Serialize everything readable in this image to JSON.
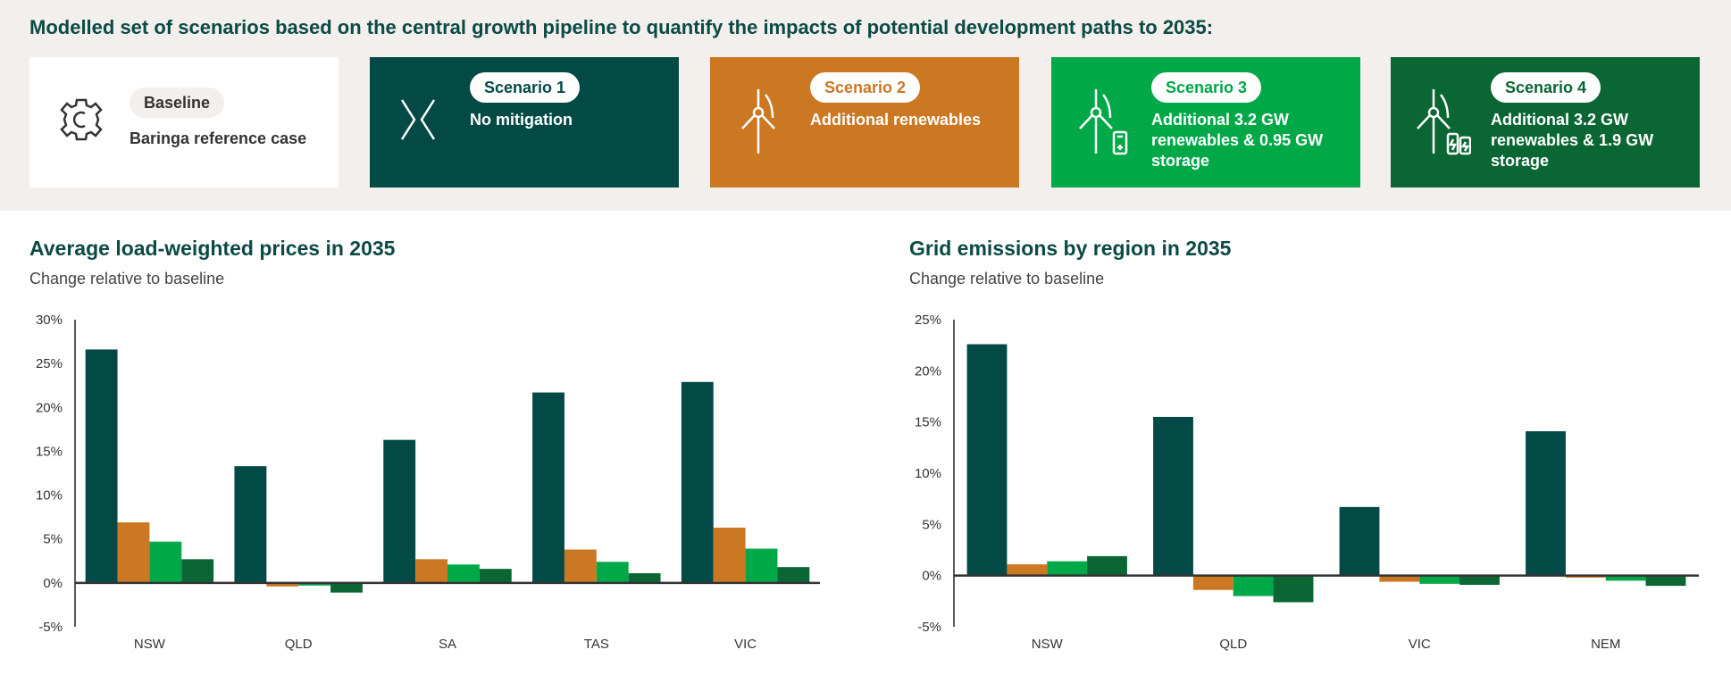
{
  "headline": "Modelled set of scenarios based on the central growth pipeline to quantify the impacts of potential development paths to 2035:",
  "cards": [
    {
      "label": "Baseline",
      "desc": "Baringa reference case",
      "icon": "gear-icon",
      "color": "#ffffff"
    },
    {
      "label": "Scenario 1",
      "desc": "No mitigation",
      "icon": "diverging-arrows-icon",
      "color": "#034a47"
    },
    {
      "label": "Scenario 2",
      "desc": "Additional renewables",
      "icon": "wind-turbine-icon",
      "color": "#cc7722"
    },
    {
      "label": "Scenario 3",
      "desc": "Additional 3.2 GW renewables & 0.95 GW storage",
      "icon": "wind-turbine-battery-icon",
      "color": "#00a847"
    },
    {
      "label": "Scenario 4",
      "desc": "Additional 3.2 GW renewables & 1.9 GW storage",
      "icon": "wind-turbine-batteries-icon",
      "color": "#0a6632"
    }
  ],
  "chart_data": [
    {
      "type": "bar",
      "title": "Average load-weighted prices in 2035",
      "subtitle": "Change relative to baseline",
      "categories": [
        "NSW",
        "QLD",
        "SA",
        "TAS",
        "VIC"
      ],
      "ylim": [
        -5,
        30
      ],
      "yticks": [
        "30%",
        "25%",
        "20%",
        "15%",
        "10%",
        "5%",
        "0%",
        "-5%"
      ],
      "ytick_values": [
        30,
        25,
        20,
        15,
        10,
        5,
        0,
        -5
      ],
      "grid": false,
      "series": [
        {
          "values": [
            26.6,
            13.3,
            16.3,
            21.7,
            22.9
          ],
          "color": "#034a47"
        },
        {
          "values": [
            6.9,
            -0.4,
            2.7,
            3.8,
            6.3
          ],
          "color": "#cc7722"
        },
        {
          "values": [
            4.7,
            -0.3,
            2.1,
            2.4,
            3.9
          ],
          "color": "#00a847"
        },
        {
          "values": [
            2.7,
            -1.1,
            1.6,
            1.1,
            1.8
          ],
          "color": "#0a6632"
        }
      ]
    },
    {
      "type": "bar",
      "title": "Grid emissions by region in 2035",
      "subtitle": "Change relative to baseline",
      "categories": [
        "NSW",
        "QLD",
        "VIC",
        "NEM"
      ],
      "ylim": [
        -5,
        25
      ],
      "yticks": [
        "25%",
        "20%",
        "15%",
        "10%",
        "5%",
        "0%",
        "-5%"
      ],
      "ytick_values": [
        25,
        20,
        15,
        10,
        5,
        0,
        -5
      ],
      "grid": false,
      "series": [
        {
          "values": [
            22.6,
            15.5,
            6.7,
            14.1
          ],
          "color": "#034a47"
        },
        {
          "values": [
            1.1,
            -1.4,
            -0.6,
            -0.2
          ],
          "color": "#cc7722"
        },
        {
          "values": [
            1.4,
            -2.0,
            -0.8,
            -0.5
          ],
          "color": "#00a847"
        },
        {
          "values": [
            1.9,
            -2.6,
            -0.9,
            -1.0
          ],
          "color": "#0a6632"
        }
      ]
    }
  ]
}
